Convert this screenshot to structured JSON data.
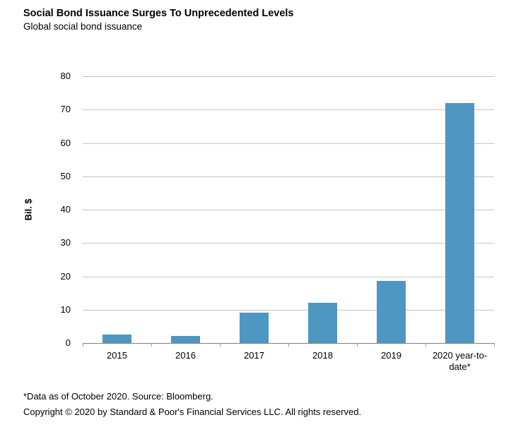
{
  "header": {
    "title": "Social Bond Issuance Surges To Unprecedented Levels",
    "subtitle": "Global social bond issuance"
  },
  "chart_data": {
    "type": "bar",
    "title": "Social Bond Issuance Surges To Unprecedented Levels",
    "subtitle": "Global social bond issuance",
    "categories": [
      "2015",
      "2016",
      "2017",
      "2018",
      "2019",
      "2020 year-to-date*"
    ],
    "values": [
      2.5,
      2.2,
      9,
      12,
      18.6,
      71.9
    ],
    "xlabel": "",
    "ylabel": "Bil. $",
    "ylim": [
      0,
      80
    ],
    "ytick_interval": 10,
    "yticks": [
      0,
      10,
      20,
      30,
      40,
      50,
      60,
      70,
      80
    ],
    "grid": true,
    "legend": false,
    "bar_color": "#4D97C2",
    "gridline_color": "#c6c6c6",
    "axis_color": "#7f7f7f"
  },
  "footer": {
    "footnote": "*Data as of October 2020. Source: Bloomberg.",
    "copyright": "Copyright © 2020 by Standard & Poor's Financial Services LLC. All rights reserved."
  }
}
